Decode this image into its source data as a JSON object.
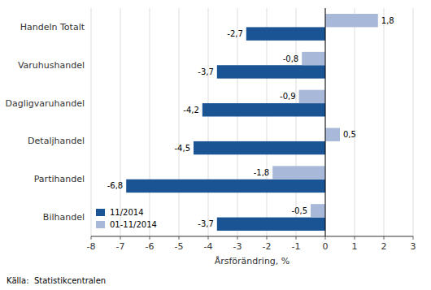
{
  "chart_data": {
    "type": "bar",
    "orientation": "horizontal",
    "categories": [
      "Handeln Totalt",
      "Varuhushandel",
      "Dagligvaruhandel",
      "Detaljhandel",
      "Partihandel",
      "Bilhandel"
    ],
    "series": [
      {
        "name": "11/2014",
        "color": "#1a5494",
        "values": [
          -2.7,
          -3.7,
          -4.2,
          -4.5,
          -6.8,
          -3.7
        ],
        "value_labels": [
          "-2,7",
          "-3,7",
          "-4,2",
          "-4,5",
          "-6,8",
          "-3,7"
        ]
      },
      {
        "name": "01-11/2014",
        "color": "#a8b8d8",
        "values": [
          1.8,
          -0.8,
          -0.9,
          0.5,
          -1.8,
          -0.5
        ],
        "value_labels": [
          "1,8",
          "-0,8",
          "-0,9",
          "0,5",
          "-1,8",
          "-0,5"
        ]
      }
    ],
    "xlabel": "Årsförändring, %",
    "source": "Källa:  Statistikcentralen",
    "xlim": [
      -8,
      3
    ],
    "xticks": [
      -8,
      -7,
      -6,
      -5,
      -4,
      -3,
      -2,
      -1,
      0,
      1,
      2,
      3
    ],
    "grid": true,
    "legend": "lower left",
    "data_labels": true
  }
}
